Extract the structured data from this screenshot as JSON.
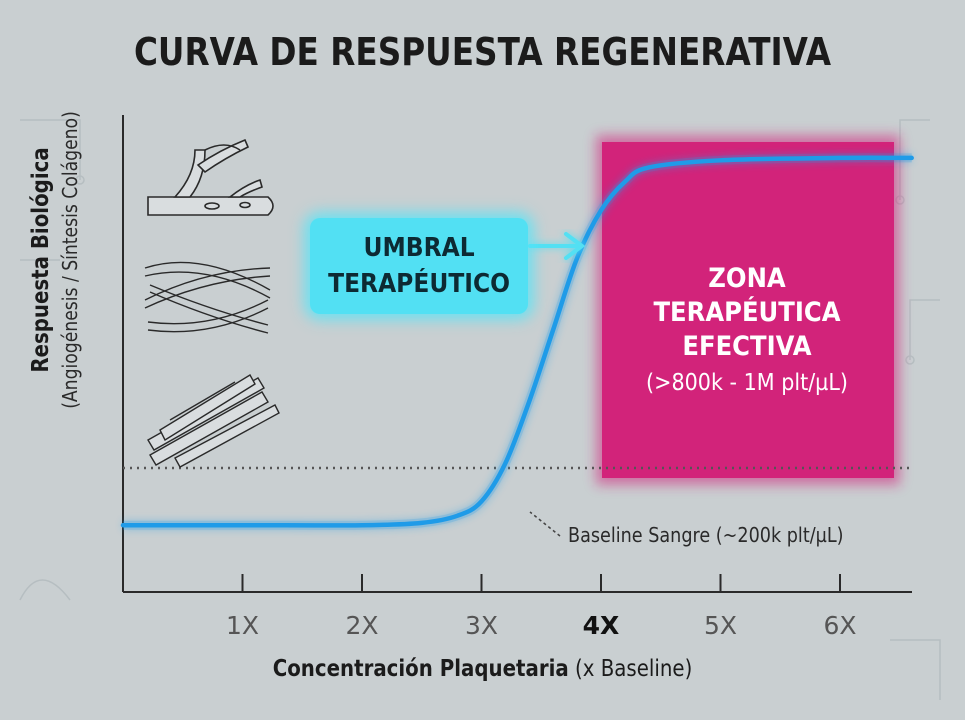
{
  "chart_data": {
    "type": "line",
    "title": "CURVA DE RESPUESTA REGENERATIVA",
    "ylabel": "Respuesta Biológica",
    "ylabel_sub": "(Angiogénesis / Síntesis Colágeno)",
    "xlabel_bold": "Concentración Plaquetaria",
    "xlabel_rest": "(x Baseline)",
    "x_ticks": [
      "1X",
      "2X",
      "3X",
      "4X",
      "5X",
      "6X"
    ],
    "highlighted_tick": "4X",
    "xlim": [
      0,
      6.6
    ],
    "ylim": [
      0,
      1
    ],
    "series": [
      {
        "values": [
          {
            "x": 0,
            "y": 0.14
          },
          {
            "x": 1,
            "y": 0.14
          },
          {
            "x": 2,
            "y": 0.14
          },
          {
            "x": 2.5,
            "y": 0.145
          },
          {
            "x": 2.8,
            "y": 0.16
          },
          {
            "x": 3.0,
            "y": 0.19
          },
          {
            "x": 3.2,
            "y": 0.27
          },
          {
            "x": 3.4,
            "y": 0.4
          },
          {
            "x": 3.6,
            "y": 0.55
          },
          {
            "x": 3.8,
            "y": 0.7
          },
          {
            "x": 4.0,
            "y": 0.8
          },
          {
            "x": 4.2,
            "y": 0.86
          },
          {
            "x": 4.4,
            "y": 0.89
          },
          {
            "x": 5.0,
            "y": 0.905
          },
          {
            "x": 6.0,
            "y": 0.91
          },
          {
            "x": 6.6,
            "y": 0.91
          }
        ]
      }
    ],
    "baseline": {
      "y": 0.26,
      "label": "Baseline Sangre (~200k plt/µL)"
    },
    "threshold_label": [
      "UMBRAL",
      "TERAPÉUTICO"
    ],
    "zone": {
      "x_start": 4,
      "x_end": 6.5,
      "lines": [
        "ZONA",
        "TERAPÉUTICA",
        "EFECTIVA"
      ],
      "range": "(>800k - 1M plt/µL)"
    },
    "grid": false,
    "colors": {
      "curve": "#1f9be8",
      "zone": "#d2237a",
      "threshold_box": "#52e0f3",
      "baseline": "#555555",
      "background": "#c9cfd1"
    }
  },
  "illustrations": [
    "vessel-branch-icon",
    "collagen-fibers-icon",
    "collagen-bundle-icon"
  ]
}
